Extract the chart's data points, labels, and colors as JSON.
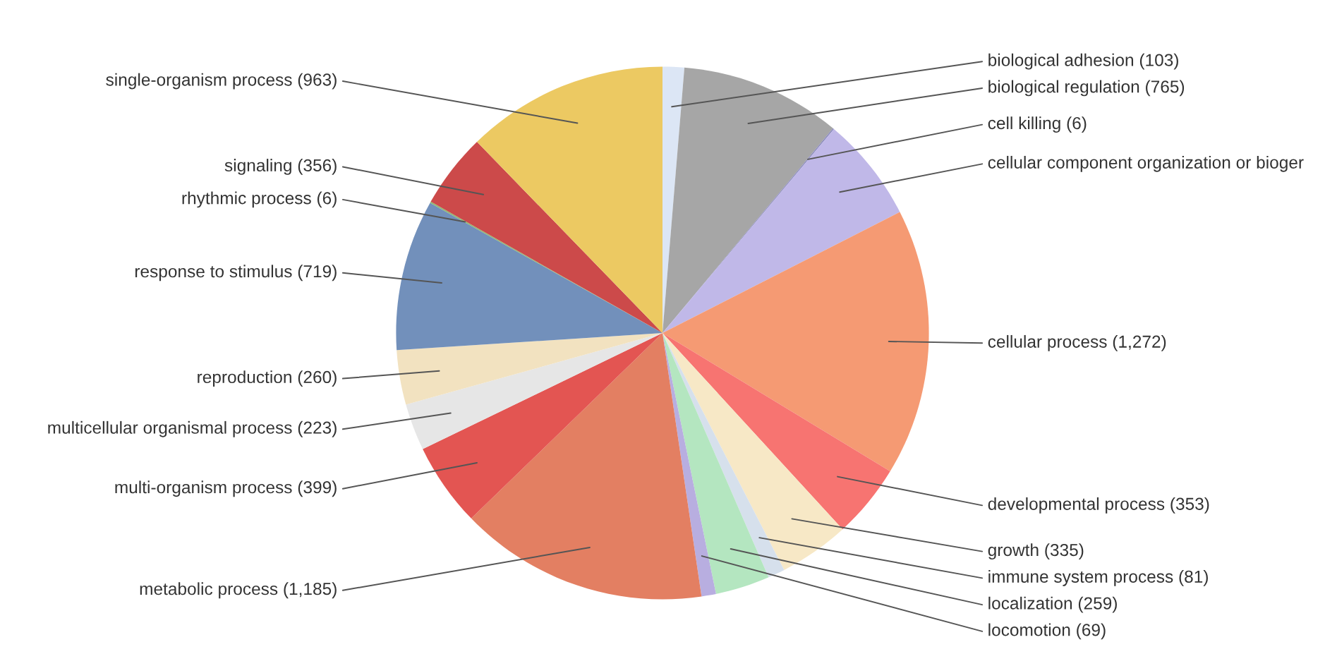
{
  "chart_data": {
    "type": "pie",
    "categories": [
      "biological adhesion",
      "biological regulation",
      "cell killing",
      "cellular component organization or bioger",
      "cellular process",
      "developmental process",
      "growth",
      "immune system process",
      "localization",
      "locomotion",
      "metabolic process",
      "multi-organism process",
      "multicellular organismal process",
      "reproduction",
      "response to stimulus",
      "rhythmic process",
      "signaling",
      "single-organism process"
    ],
    "values": [
      103,
      765,
      6,
      500,
      1272,
      353,
      335,
      81,
      259,
      69,
      1185,
      399,
      223,
      260,
      719,
      6,
      356,
      963
    ],
    "value_labels": [
      "(103)",
      "(765)",
      "(6)",
      null,
      "(1,272)",
      "(353)",
      "(335)",
      "(81)",
      "(259)",
      "(69)",
      "(1,185)",
      "(399)",
      "(223)",
      "(260)",
      "(719)",
      "(6)",
      "(356)",
      "(963)"
    ],
    "colors": [
      "#dce6f5",
      "#a6a6a6",
      "#8b8bbb",
      "#c0b8e8",
      "#f59a73",
      "#f77471",
      "#f7e8c6",
      "#d6e0ec",
      "#b4e6c0",
      "#b8aee0",
      "#e37f62",
      "#e35552",
      "#e6e6e6",
      "#f2e2c0",
      "#7290bb",
      "#8fb86f",
      "#cc4a4a",
      "#ecc962"
    ]
  }
}
